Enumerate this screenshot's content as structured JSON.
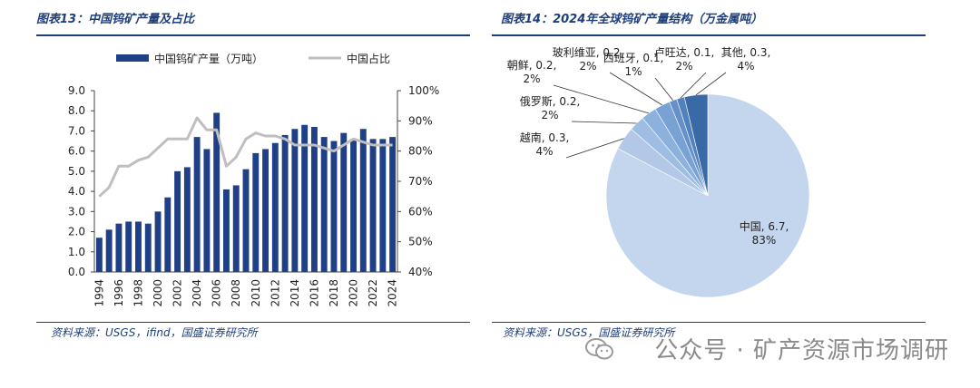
{
  "left_panel": {
    "title": "图表13：中国钨矿产量及占比",
    "source": "资料来源：USGS，ifind，国盛证券研究所"
  },
  "right_panel": {
    "title": "图表14：2024年全球钨矿产量结构（万金属吨）",
    "source": "资料来源：USGS，国盛证券研究所"
  },
  "watermark": {
    "text": "公众号 · 矿产资源市场调研",
    "icon": "wechat-icon"
  },
  "colors": {
    "bar": "#1f3f87",
    "line": "#bfbfbf",
    "rule": "#1f3f7a"
  },
  "chart_data": [
    {
      "type": "bar",
      "combo_line": true,
      "categories": [
        "1994",
        "1995",
        "1996",
        "1997",
        "1998",
        "1999",
        "2000",
        "2001",
        "2002",
        "2003",
        "2004",
        "2005",
        "2006",
        "2007",
        "2008",
        "2009",
        "2010",
        "2011",
        "2012",
        "2013",
        "2014",
        "2015",
        "2016",
        "2017",
        "2018",
        "2019",
        "2020",
        "2021",
        "2022",
        "2023",
        "2024"
      ],
      "x_tick_labels": [
        "1994",
        "1996",
        "1998",
        "2000",
        "2002",
        "2004",
        "2006",
        "2008",
        "2010",
        "2012",
        "2014",
        "2016",
        "2018",
        "2020",
        "2022",
        "2024"
      ],
      "series": [
        {
          "name": "中国钨矿产量（万吨）",
          "axis": "left",
          "type": "bar",
          "values": [
            1.7,
            2.1,
            2.4,
            2.5,
            2.5,
            2.4,
            3.0,
            3.7,
            5.0,
            5.2,
            6.7,
            6.1,
            7.9,
            4.1,
            4.3,
            5.1,
            5.9,
            6.1,
            6.4,
            6.8,
            7.1,
            7.3,
            7.2,
            6.7,
            6.5,
            6.9,
            6.6,
            7.1,
            6.6,
            6.6,
            6.7
          ]
        },
        {
          "name": "中国占比",
          "axis": "right",
          "type": "line",
          "values": [
            65,
            68,
            75,
            75,
            77,
            78,
            81,
            84,
            84,
            84,
            91,
            87,
            87,
            75,
            78,
            84,
            86,
            85,
            85,
            84,
            82,
            82,
            82,
            81,
            80,
            82,
            84,
            83,
            82,
            82,
            82
          ]
        }
      ],
      "y_left": {
        "ticks": [
          "0.0",
          "1.0",
          "2.0",
          "3.0",
          "4.0",
          "5.0",
          "6.0",
          "7.0",
          "8.0",
          "9.0"
        ],
        "ylim": [
          0,
          9
        ]
      },
      "y_right": {
        "ticks": [
          "40%",
          "50%",
          "60%",
          "70%",
          "80%",
          "90%",
          "100%"
        ],
        "ylim": [
          40,
          100
        ]
      },
      "legend_placement": "top"
    },
    {
      "type": "pie",
      "slices": [
        {
          "name": "中国",
          "value": 6.7,
          "pct": "83%",
          "color": "#c4d6ee"
        },
        {
          "name": "越南",
          "value": 0.3,
          "pct": "4%",
          "color": "#b2c8e6"
        },
        {
          "name": "俄罗斯",
          "value": 0.2,
          "pct": "2%",
          "color": "#9fbde2"
        },
        {
          "name": "朝鲜",
          "value": 0.2,
          "pct": "2%",
          "color": "#8db1dd"
        },
        {
          "name": "玻利维亚",
          "value": 0.2,
          "pct": "2%",
          "color": "#78a1d4"
        },
        {
          "name": "西班牙",
          "value": 0.1,
          "pct": "1%",
          "color": "#6591c8"
        },
        {
          "name": "卢旺达",
          "value": 0.1,
          "pct": "2%",
          "color": "#5282bd"
        },
        {
          "name": "其他",
          "value": 0.3,
          "pct": "4%",
          "color": "#3a6aa5"
        }
      ]
    }
  ]
}
